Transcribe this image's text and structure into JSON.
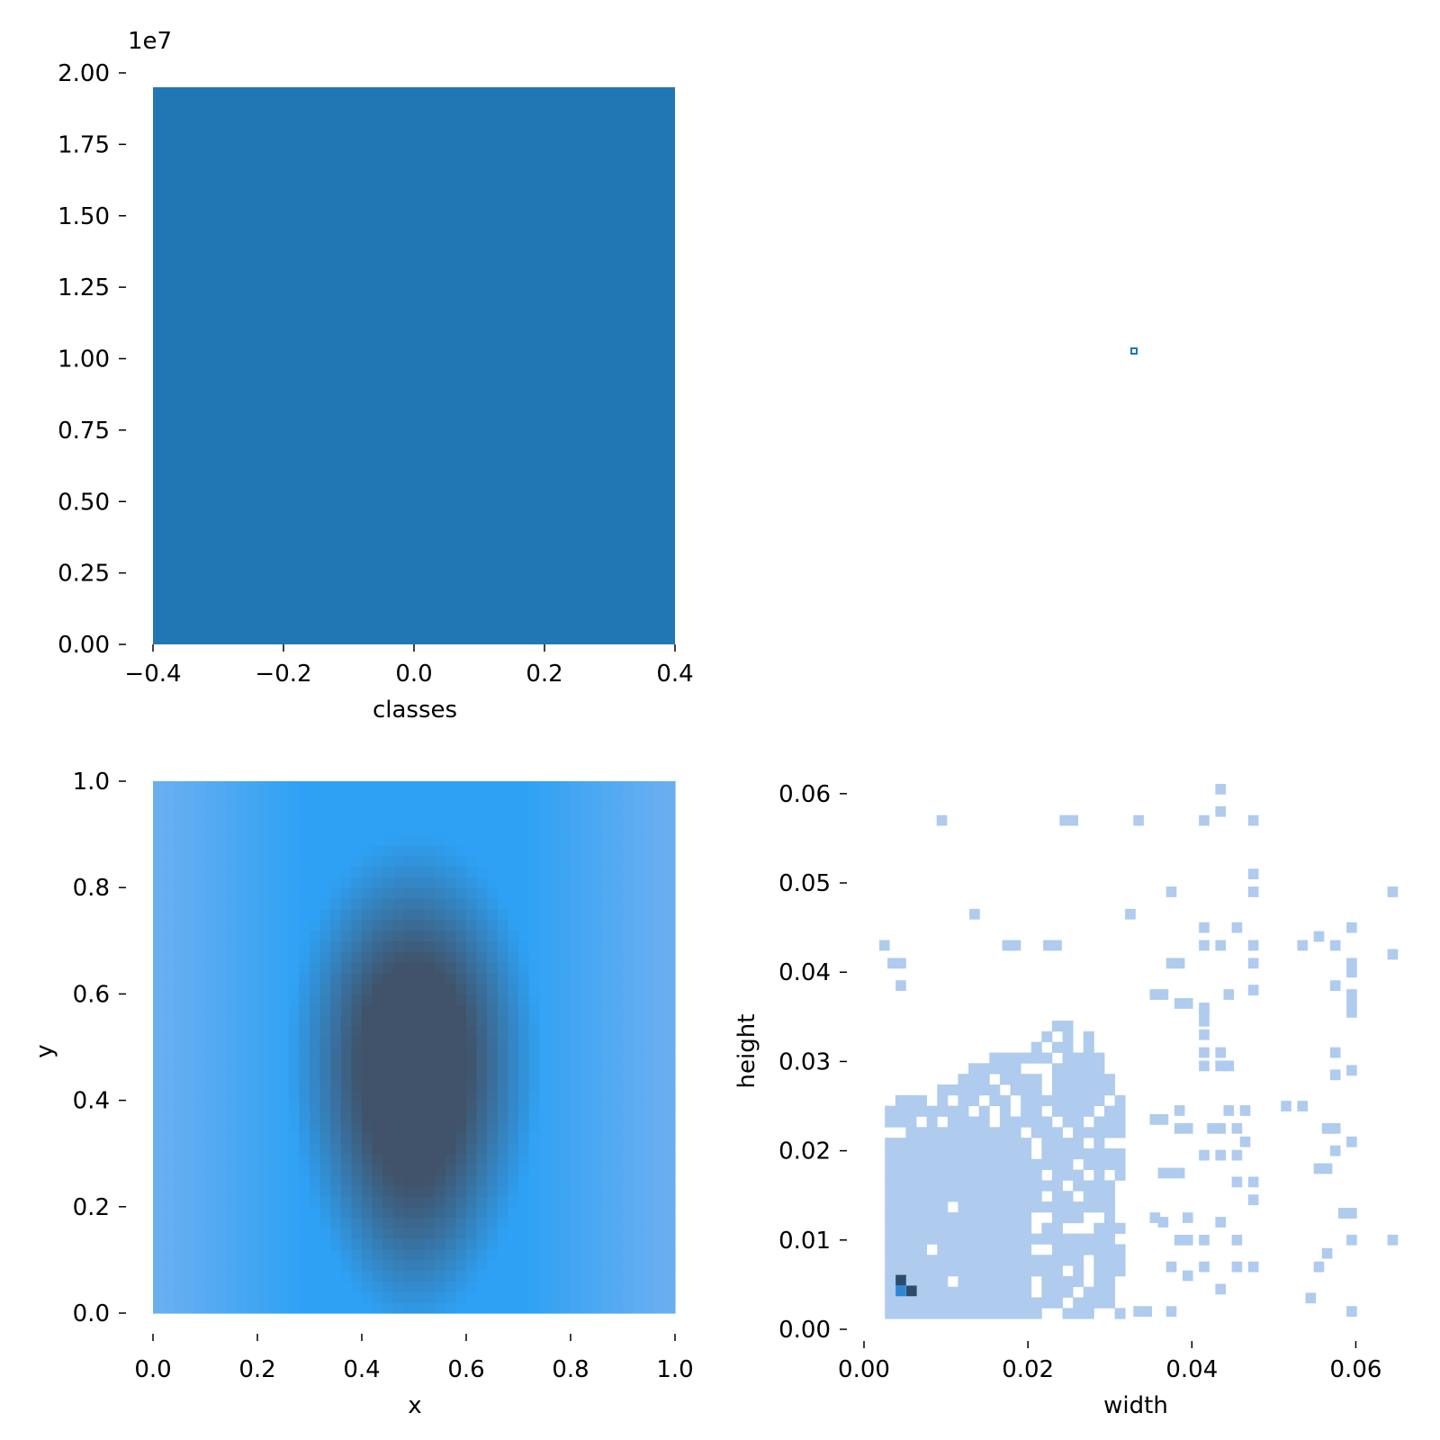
{
  "chart_data": [
    {
      "type": "bar",
      "name": "classes-histogram",
      "xlabel": "classes",
      "ylabel": "",
      "offset_text": "1e7",
      "xlim": [
        -0.4,
        0.4
      ],
      "ylim": [
        0,
        20000000
      ],
      "grid": false,
      "categories": [
        "0"
      ],
      "values": [
        19500000
      ],
      "color": "#2077b4",
      "x_ticks": [
        "−0.4",
        "−0.2",
        "0.0",
        "0.2",
        "0.4"
      ],
      "x_tick_values": [
        -0.4,
        -0.2,
        0.0,
        0.2,
        0.4
      ],
      "y_ticks": [
        "0.00",
        "0.25",
        "0.50",
        "0.75",
        "1.00",
        "1.25",
        "1.50",
        "1.75",
        "2.00"
      ],
      "y_tick_values": [
        0,
        2500000,
        5000000,
        7500000,
        10000000,
        12500000,
        15000000,
        17500000,
        20000000
      ]
    },
    {
      "type": "scatter",
      "name": "empty-upper-right-panel",
      "xlabel": "",
      "ylabel": "",
      "marker_color": "#2077b4",
      "points": [
        {
          "x": 0.5,
          "y": 0.5
        }
      ]
    },
    {
      "type": "heatmap",
      "name": "x-y-density",
      "xlabel": "x",
      "ylabel": "y",
      "xlim": [
        0,
        1
      ],
      "ylim": [
        0,
        1
      ],
      "grid": false,
      "colors": {
        "low": "#8fb8ee",
        "mid": "#2ea1f4",
        "high": "#40536a"
      },
      "density_peak": {
        "x": 0.5,
        "y": 0.48
      },
      "x_ticks": [
        "0.0",
        "0.2",
        "0.4",
        "0.6",
        "0.8",
        "1.0"
      ],
      "x_tick_values": [
        0,
        0.2,
        0.4,
        0.6,
        0.8,
        1.0
      ],
      "y_ticks": [
        "0.0",
        "0.2",
        "0.4",
        "0.6",
        "0.8",
        "1.0"
      ],
      "y_tick_values": [
        0,
        0.2,
        0.4,
        0.6,
        0.8,
        1.0
      ]
    },
    {
      "type": "heatmap",
      "name": "width-height-histogram",
      "xlabel": "width",
      "ylabel": "height",
      "xlim": [
        0,
        0.065
      ],
      "ylim": [
        0,
        0.062
      ],
      "grid": false,
      "colors": {
        "cell": "#afcbee",
        "dense": "#2e87d6",
        "peak": "#2b4d6b"
      },
      "dense_cells": [
        {
          "x": 0.0045,
          "y": 0.0055,
          "level": "peak"
        },
        {
          "x": 0.0045,
          "y": 0.0043,
          "level": "dense"
        },
        {
          "x": 0.0058,
          "y": 0.0043,
          "level": "peak"
        }
      ],
      "sparse_cells": [
        [
          0.0435,
          0.0605
        ],
        [
          0.0435,
          0.058
        ],
        [
          0.0095,
          0.057
        ],
        [
          0.0245,
          0.057
        ],
        [
          0.0255,
          0.057
        ],
        [
          0.0335,
          0.057
        ],
        [
          0.0415,
          0.057
        ],
        [
          0.0475,
          0.057
        ],
        [
          0.0475,
          0.051
        ],
        [
          0.0375,
          0.049
        ],
        [
          0.0475,
          0.049
        ],
        [
          0.0645,
          0.049
        ],
        [
          0.0135,
          0.0465
        ],
        [
          0.0325,
          0.0465
        ],
        [
          0.0415,
          0.045
        ],
        [
          0.0455,
          0.045
        ],
        [
          0.0595,
          0.045
        ],
        [
          0.0555,
          0.044
        ],
        [
          0.0025,
          0.043
        ],
        [
          0.0175,
          0.043
        ],
        [
          0.0185,
          0.043
        ],
        [
          0.0225,
          0.043
        ],
        [
          0.0235,
          0.043
        ],
        [
          0.0415,
          0.043
        ],
        [
          0.0435,
          0.043
        ],
        [
          0.0475,
          0.043
        ],
        [
          0.0535,
          0.043
        ],
        [
          0.0575,
          0.043
        ],
        [
          0.0645,
          0.042
        ],
        [
          0.0035,
          0.041
        ],
        [
          0.0045,
          0.041
        ],
        [
          0.0375,
          0.041
        ],
        [
          0.0385,
          0.041
        ],
        [
          0.0475,
          0.041
        ],
        [
          0.0595,
          0.041
        ],
        [
          0.0595,
          0.04
        ],
        [
          0.0045,
          0.0385
        ],
        [
          0.0595,
          0.0375
        ],
        [
          0.0475,
          0.038
        ],
        [
          0.0575,
          0.0385
        ],
        [
          0.0595,
          0.0365
        ],
        [
          0.0415,
          0.0355
        ],
        [
          0.0595,
          0.0355
        ],
        [
          0.0575,
          0.031
        ],
        [
          0.0595,
          0.029
        ],
        [
          0.0575,
          0.0285
        ],
        [
          0.0515,
          0.025
        ],
        [
          0.0535,
          0.025
        ],
        [
          0.0565,
          0.0225
        ],
        [
          0.0575,
          0.0225
        ],
        [
          0.0595,
          0.021
        ],
        [
          0.0575,
          0.02
        ],
        [
          0.0555,
          0.018
        ],
        [
          0.0565,
          0.018
        ],
        [
          0.0585,
          0.013
        ],
        [
          0.0595,
          0.013
        ],
        [
          0.0595,
          0.01
        ],
        [
          0.0645,
          0.01
        ],
        [
          0.0565,
          0.0085
        ],
        [
          0.0555,
          0.007
        ],
        [
          0.0545,
          0.0035
        ],
        [
          0.0595,
          0.002
        ],
        [
          0.0375,
          0.002
        ],
        [
          0.0335,
          0.002
        ],
        [
          0.0345,
          0.002
        ],
        [
          0.0435,
          0.0045
        ],
        [
          0.0455,
          0.007
        ],
        [
          0.0475,
          0.007
        ],
        [
          0.0415,
          0.007
        ],
        [
          0.0395,
          0.006
        ],
        [
          0.0435,
          0.012
        ],
        [
          0.0455,
          0.01
        ],
        [
          0.0415,
          0.01
        ],
        [
          0.0395,
          0.01
        ],
        [
          0.0385,
          0.01
        ],
        [
          0.0375,
          0.007
        ],
        [
          0.0395,
          0.0125
        ],
        [
          0.0365,
          0.012
        ],
        [
          0.0355,
          0.0125
        ],
        [
          0.0365,
          0.0175
        ],
        [
          0.0375,
          0.0175
        ],
        [
          0.0385,
          0.0175
        ],
        [
          0.0415,
          0.0195
        ],
        [
          0.0435,
          0.0195
        ],
        [
          0.0455,
          0.0165
        ],
        [
          0.0475,
          0.0165
        ],
        [
          0.0475,
          0.0145
        ],
        [
          0.0455,
          0.0195
        ],
        [
          0.0465,
          0.021
        ],
        [
          0.0435,
          0.0225
        ],
        [
          0.0455,
          0.0225
        ],
        [
          0.0465,
          0.0245
        ],
        [
          0.0445,
          0.0245
        ],
        [
          0.0425,
          0.0225
        ],
        [
          0.0385,
          0.0225
        ],
        [
          0.0395,
          0.0225
        ],
        [
          0.0355,
          0.0235
        ],
        [
          0.0365,
          0.0235
        ],
        [
          0.0385,
          0.0245
        ],
        [
          0.0415,
          0.0295
        ],
        [
          0.0435,
          0.0295
        ],
        [
          0.0445,
          0.0295
        ],
        [
          0.0415,
          0.031
        ],
        [
          0.0415,
          0.033
        ],
        [
          0.0435,
          0.031
        ],
        [
          0.0415,
          0.0345
        ],
        [
          0.0415,
          0.036
        ],
        [
          0.0385,
          0.0365
        ],
        [
          0.0395,
          0.0365
        ],
        [
          0.0445,
          0.0375
        ],
        [
          0.0365,
          0.0375
        ],
        [
          0.0355,
          0.0375
        ]
      ],
      "dense_region": [
        [
          0.0025,
          0.0015
        ],
        [
          0.032,
          0.0015
        ],
        [
          0.032,
          0.0245
        ],
        [
          0.0275,
          0.034
        ],
        [
          0.0235,
          0.035
        ],
        [
          0.019,
          0.0305
        ],
        [
          0.0155,
          0.0305
        ],
        [
          0.01,
          0.0275
        ],
        [
          0.0025,
          0.0255
        ]
      ],
      "x_ticks": [
        "0.00",
        "0.02",
        "0.04",
        "0.06"
      ],
      "x_tick_values": [
        0,
        0.02,
        0.04,
        0.06
      ],
      "y_ticks": [
        "0.00",
        "0.01",
        "0.02",
        "0.03",
        "0.04",
        "0.05",
        "0.06"
      ],
      "y_tick_values": [
        0,
        0.01,
        0.02,
        0.03,
        0.04,
        0.05,
        0.06
      ]
    }
  ]
}
